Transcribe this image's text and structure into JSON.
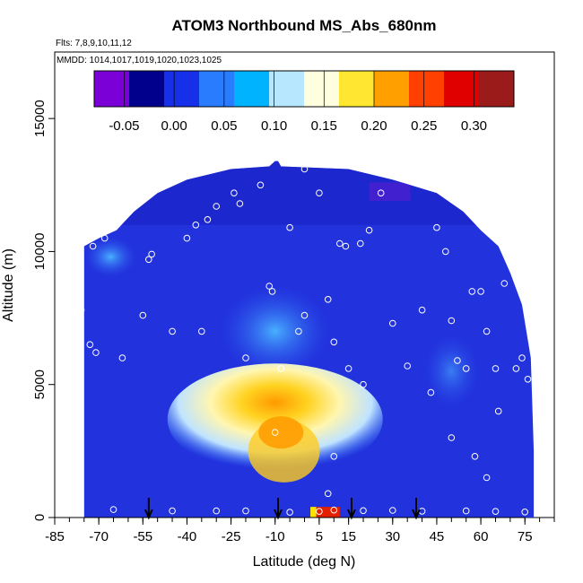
{
  "chart_data": {
    "type": "heatmap",
    "title": "ATOM3 Northbound MS_Abs_680nm",
    "subtitle_flights": "Flts: 7,8,9,10,11,12",
    "subtitle_dates": "MMDD: 1014,1017,1019,1020,1023,1025",
    "xlabel": "Latitude (deg N)",
    "ylabel": "Altitude (m)",
    "xlim": [
      -85,
      85
    ],
    "ylim": [
      0,
      17500
    ],
    "x_ticks": [
      -85,
      -70,
      -55,
      -40,
      -25,
      -10,
      5,
      15,
      30,
      45,
      60,
      75
    ],
    "x_tick_labels": [
      "-85",
      "-70",
      "-55",
      "-40",
      "-25",
      "-10",
      "5",
      "15",
      "30",
      "45",
      "60",
      "75"
    ],
    "y_ticks": [
      0,
      5000,
      10000,
      15000
    ],
    "y_tick_labels": [
      "0",
      "5000",
      "10000",
      "15000"
    ],
    "colorbar": {
      "min": -0.08,
      "max": 0.34,
      "ticks": [
        -0.05,
        0.0,
        0.05,
        0.1,
        0.15,
        0.2,
        0.25,
        0.3
      ],
      "tick_labels": [
        "-0.05",
        "0.00",
        "0.05",
        "0.10",
        "0.15",
        "0.20",
        "0.25",
        "0.30"
      ]
    },
    "arrows_lat": [
      -53,
      -9,
      16,
      38
    ],
    "colors": {
      "background": "#2233dd",
      "peak": "#e21f00",
      "marker": "#ffffff"
    }
  }
}
